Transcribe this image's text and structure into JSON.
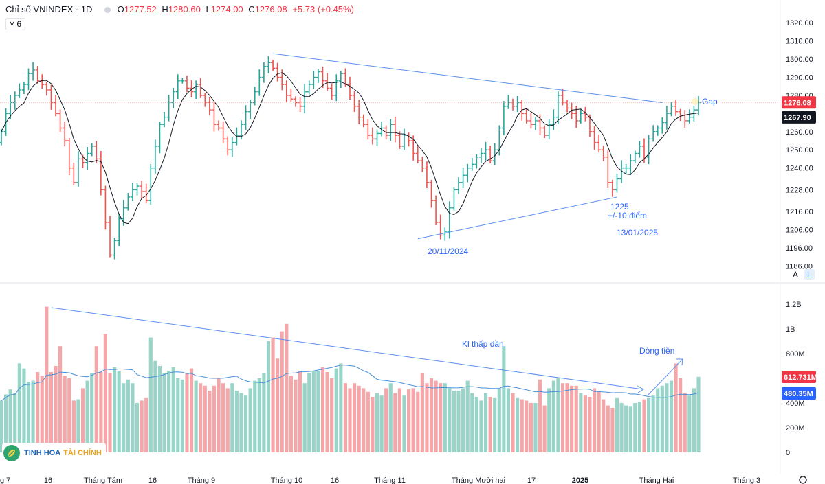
{
  "header": {
    "title": "Chỉ số VNINDEX · 1D",
    "open_label": "O",
    "open": "1277.52",
    "high_label": "H",
    "high": "1280.60",
    "low_label": "L",
    "low": "1274.00",
    "close_label": "C",
    "close": "1276.08",
    "change": "+5.73 (+0.45%)"
  },
  "ma_chip": "˅ 6",
  "scale_buttons": {
    "a": "A",
    "l": "L"
  },
  "watermark": {
    "brand1": "TINH HOA",
    "brand2": "TÀI CHÍNH"
  },
  "colors": {
    "up": "#26a69a",
    "down": "#ef5350",
    "vol_up": "#99d4c8",
    "vol_down": "#f4a6a8",
    "trend": "#5b8def",
    "ma": "#131722",
    "vol_ma": "#4a90d9",
    "annotation": "#2962ff"
  },
  "chart_data": [
    {
      "type": "candlestick",
      "title": "Chỉ số VNINDEX · 1D",
      "ylim": [
        1185,
        1325
      ],
      "y_ticks": [
        "1320.00",
        "1310.00",
        "1300.00",
        "1290.00",
        "1280.00",
        "1270.00",
        "1260.00",
        "1250.00",
        "1240.00",
        "1228.00",
        "1216.00",
        "1206.00",
        "1196.00",
        "1186.00"
      ],
      "x_ticks": [
        "g 7",
        "16",
        "Tháng Tám",
        "16",
        "Tháng 9",
        "Tháng 10",
        "16",
        "Tháng 11",
        "Tháng Mười hai",
        "17",
        "2025",
        "Tháng Hai",
        "Tháng 3"
      ],
      "price_labels": {
        "last": "1276.08",
        "ma": "1267.90"
      },
      "ma_period": 6,
      "closes": [
        1260,
        1270,
        1276,
        1280,
        1283,
        1286,
        1292,
        1294,
        1288,
        1286,
        1283,
        1276,
        1270,
        1262,
        1255,
        1240,
        1232,
        1245,
        1243,
        1248,
        1252,
        1245,
        1228,
        1210,
        1192,
        1200,
        1212,
        1218,
        1224,
        1228,
        1230,
        1227,
        1222,
        1240,
        1252,
        1264,
        1268,
        1276,
        1282,
        1288,
        1288,
        1284,
        1282,
        1286,
        1280,
        1276,
        1272,
        1264,
        1262,
        1256,
        1250,
        1254,
        1258,
        1264,
        1271,
        1276,
        1282,
        1290,
        1296,
        1298,
        1295,
        1290,
        1286,
        1280,
        1278,
        1276,
        1274,
        1282,
        1286,
        1290,
        1293,
        1288,
        1284,
        1280,
        1288,
        1292,
        1286,
        1280,
        1274,
        1268,
        1264,
        1258,
        1256,
        1259,
        1262,
        1258,
        1264,
        1258,
        1252,
        1258,
        1255,
        1248,
        1244,
        1240,
        1232,
        1222,
        1210,
        1203,
        1205,
        1218,
        1228,
        1232,
        1236,
        1240,
        1242,
        1246,
        1248,
        1250,
        1244,
        1250,
        1262,
        1274,
        1276,
        1274,
        1276,
        1270,
        1266,
        1264,
        1266,
        1262,
        1258,
        1264,
        1268,
        1280,
        1276,
        1273,
        1270,
        1266,
        1270,
        1268,
        1260,
        1254,
        1250,
        1246,
        1232,
        1228,
        1234,
        1240,
        1240,
        1244,
        1248,
        1252,
        1246,
        1256,
        1260,
        1262,
        1265,
        1270,
        1274,
        1271,
        1269,
        1266,
        1268,
        1272,
        1276
      ],
      "annotations": [
        "20/11/2024",
        "1225",
        "+/-10 điểm",
        "13/01/2025",
        "Gap"
      ]
    },
    {
      "type": "bar",
      "title": "Volume",
      "ylim": [
        0,
        1200
      ],
      "unit": "M",
      "y_ticks": [
        "1.2B",
        "1B",
        "800M",
        "600M",
        "400M",
        "200M",
        "0"
      ],
      "price_labels": {
        "last": "612.731M",
        "ma": "480.35M"
      },
      "values": [
        420,
        470,
        510,
        480,
        720,
        680,
        570,
        580,
        650,
        620,
        1180,
        650,
        700,
        860,
        620,
        600,
        420,
        430,
        520,
        580,
        640,
        860,
        650,
        960,
        640,
        690,
        660,
        560,
        590,
        560,
        400,
        420,
        440,
        930,
        740,
        700,
        640,
        660,
        690,
        600,
        590,
        640,
        680,
        580,
        560,
        540,
        500,
        540,
        600,
        560,
        520,
        560,
        500,
        480,
        460,
        520,
        580,
        600,
        640,
        900,
        930,
        760,
        980,
        1040,
        620,
        590,
        660,
        560,
        640,
        660,
        660,
        690,
        650,
        600,
        680,
        720,
        560,
        520,
        560,
        540,
        520,
        490,
        450,
        480,
        460,
        520,
        560,
        480,
        520,
        460,
        510,
        520,
        490,
        640,
        560,
        600,
        580,
        560,
        560,
        520,
        500,
        500,
        520,
        580,
        480,
        450,
        420,
        480,
        450,
        440,
        520,
        860,
        520,
        480,
        440,
        430,
        420,
        400,
        400,
        590,
        380,
        520,
        580,
        600,
        560,
        560,
        540,
        540,
        480,
        460,
        450,
        520,
        490,
        430,
        380,
        360,
        440,
        400,
        380,
        370,
        400,
        410,
        430,
        440,
        460,
        520,
        540,
        560,
        580,
        720,
        600,
        480,
        460,
        520,
        612
      ]
    }
  ]
}
